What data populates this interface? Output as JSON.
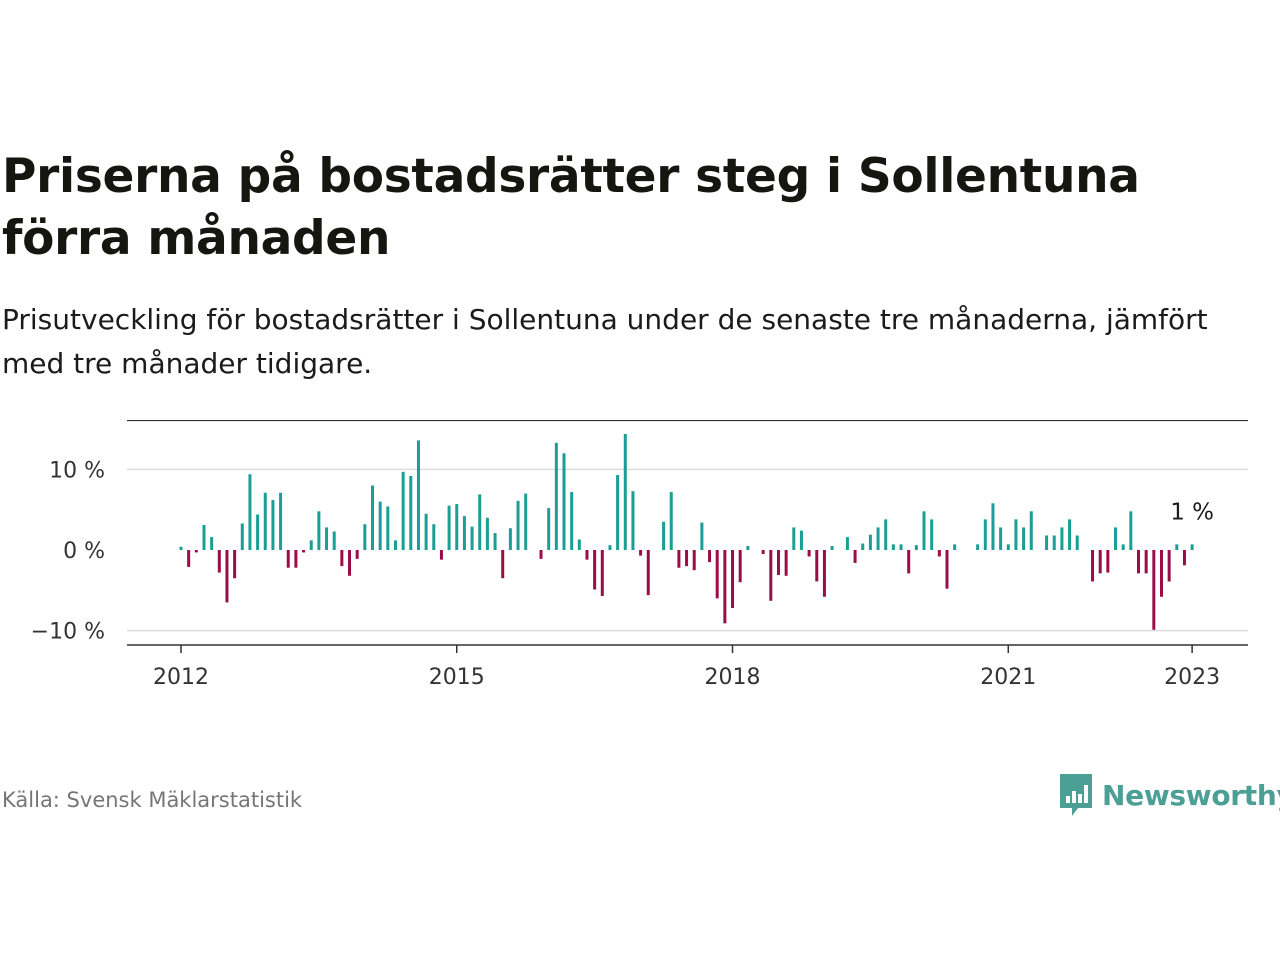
{
  "title": "Priserna på bostadsrätter steg i Sollentuna förra månaden",
  "subtitle": "Prisutveckling för bostadsrätter i Sollentuna under de senaste tre månaderna, jämfört med tre månader tidigare.",
  "source": "Källa: Svensk Mäklarstatistik",
  "brand": "Newsworthy",
  "colors": {
    "positive": "#1a9e95",
    "negative": "#9b0d47",
    "brand": "#4b9f95"
  },
  "chart_data": {
    "type": "bar",
    "x_unit": "month",
    "ylim": [
      -11,
      13.5
    ],
    "yticks": [
      10,
      0,
      -10
    ],
    "ytick_labels": [
      "10 %",
      "0 %",
      "−10 %"
    ],
    "xticks": [
      "2012-01",
      "2015-01",
      "2018-01",
      "2021-01",
      "2023-01"
    ],
    "xtick_labels": [
      "2012",
      "2015",
      "2018",
      "2021",
      "2023"
    ],
    "grid": true,
    "last_value_label": "1 %",
    "series": [
      {
        "x": [
          "2012-01",
          "2012-02",
          "2012-03",
          "2012-04",
          "2012-05",
          "2012-06",
          "2012-07",
          "2012-08",
          "2012-09",
          "2012-10",
          "2012-11",
          "2012-12",
          "2013-01",
          "2013-02",
          "2013-03",
          "2013-04",
          "2013-05",
          "2013-06",
          "2013-07",
          "2013-08",
          "2013-09",
          "2013-10",
          "2013-11",
          "2013-12",
          "2014-01",
          "2014-02",
          "2014-03",
          "2014-04",
          "2014-05",
          "2014-06",
          "2014-07",
          "2014-08",
          "2014-09",
          "2014-10",
          "2014-11",
          "2014-12",
          "2015-01",
          "2015-02",
          "2015-03",
          "2015-04",
          "2015-05",
          "2015-06",
          "2015-07",
          "2015-08",
          "2015-09",
          "2015-10",
          "2015-11",
          "2015-12",
          "2016-01",
          "2016-02",
          "2016-03",
          "2016-04",
          "2016-05",
          "2016-06",
          "2016-07",
          "2016-08",
          "2016-09",
          "2016-10",
          "2016-11",
          "2016-12",
          "2017-01",
          "2017-02",
          "2017-03",
          "2017-04",
          "2017-05",
          "2017-06",
          "2017-07",
          "2017-08",
          "2017-09",
          "2017-10",
          "2017-11",
          "2017-12",
          "2018-01",
          "2018-02",
          "2018-03",
          "2018-04",
          "2018-05",
          "2018-06",
          "2018-07",
          "2018-08",
          "2018-09",
          "2018-10",
          "2018-11",
          "2018-12",
          "2019-01",
          "2019-02",
          "2019-03",
          "2019-04",
          "2019-05",
          "2019-06",
          "2019-07",
          "2019-08",
          "2019-09",
          "2019-10",
          "2019-11",
          "2019-12",
          "2020-01",
          "2020-02",
          "2020-03",
          "2020-04",
          "2020-05",
          "2020-06",
          "2020-07",
          "2020-08",
          "2020-09",
          "2020-10",
          "2020-11",
          "2020-12",
          "2021-01",
          "2021-02",
          "2021-03",
          "2021-04",
          "2021-05",
          "2021-06",
          "2021-07",
          "2021-08",
          "2021-09",
          "2021-10",
          "2021-11",
          "2021-12",
          "2022-01",
          "2022-02",
          "2022-03",
          "2022-04",
          "2022-05",
          "2022-06",
          "2022-07",
          "2022-08",
          "2022-09",
          "2022-10",
          "2022-11",
          "2022-12",
          "2023-01"
        ],
        "values": [
          0.4,
          -2.1,
          -0.3,
          3.1,
          1.6,
          -2.8,
          -6.5,
          -3.5,
          3.3,
          9.4,
          4.4,
          7.1,
          6.2,
          7.1,
          -2.2,
          -2.2,
          -0.3,
          1.2,
          4.8,
          2.8,
          2.3,
          -2.0,
          -3.2,
          -1.1,
          3.2,
          8.0,
          6.0,
          5.4,
          1.2,
          9.7,
          9.2,
          13.6,
          4.5,
          3.2,
          -1.2,
          5.5,
          5.7,
          4.2,
          2.9,
          6.9,
          4.0,
          2.1,
          -3.5,
          2.7,
          6.1,
          7.0,
          0.0,
          -1.1,
          5.2,
          13.3,
          12.0,
          7.2,
          1.3,
          -1.2,
          -4.9,
          -5.7,
          0.6,
          9.3,
          14.4,
          7.3,
          -0.7,
          -5.6,
          0.0,
          3.5,
          7.2,
          -2.2,
          -2.0,
          -2.5,
          3.4,
          -1.5,
          -6.0,
          -9.1,
          -7.2,
          -4.0,
          0.5,
          0.0,
          -0.5,
          -6.3,
          -3.1,
          -3.2,
          2.8,
          2.4,
          -0.8,
          -3.9,
          -5.8,
          0.5,
          0.0,
          1.6,
          -1.6,
          0.8,
          1.9,
          2.8,
          3.8,
          0.7,
          0.7,
          -2.9,
          0.6,
          4.8,
          3.8,
          -0.8,
          -4.8,
          0.7,
          0.0,
          0.0,
          0.7,
          3.8,
          5.8,
          2.8,
          0.7,
          3.8,
          2.8,
          4.8,
          0.0,
          1.8,
          1.8,
          2.8,
          3.8,
          1.8,
          0.0,
          -3.9,
          -2.9,
          -2.8,
          2.8,
          0.7,
          4.8,
          -2.9,
          -2.9,
          -9.9,
          -5.8,
          -3.9,
          0.7,
          -1.9,
          0.7
        ]
      }
    ]
  }
}
